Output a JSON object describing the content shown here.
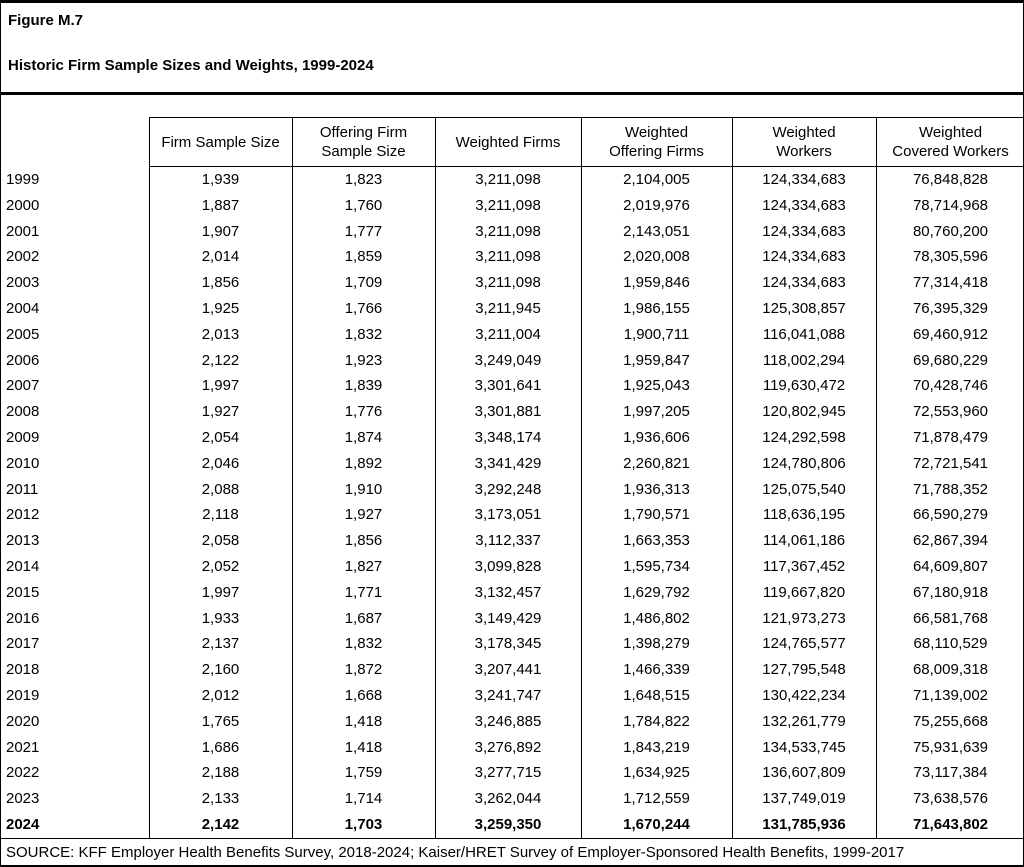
{
  "header": {
    "figure_label": "Figure M.7",
    "title": "Historic Firm Sample Sizes and Weights, 1999-2024"
  },
  "chart_data": {
    "type": "table",
    "title": "Historic Firm Sample Sizes and Weights, 1999-2024",
    "columns": [
      "Firm Sample Size",
      "Offering Firm\nSample Size",
      "Weighted Firms",
      "Weighted\nOffering Firms",
      "Weighted\nWorkers",
      "Weighted\nCovered Workers"
    ],
    "rows": [
      {
        "year": "1999",
        "values": [
          "1,939",
          "1,823",
          "3,211,098",
          "2,104,005",
          "124,334,683",
          "76,848,828"
        ]
      },
      {
        "year": "2000",
        "values": [
          "1,887",
          "1,760",
          "3,211,098",
          "2,019,976",
          "124,334,683",
          "78,714,968"
        ]
      },
      {
        "year": "2001",
        "values": [
          "1,907",
          "1,777",
          "3,211,098",
          "2,143,051",
          "124,334,683",
          "80,760,200"
        ]
      },
      {
        "year": "2002",
        "values": [
          "2,014",
          "1,859",
          "3,211,098",
          "2,020,008",
          "124,334,683",
          "78,305,596"
        ]
      },
      {
        "year": "2003",
        "values": [
          "1,856",
          "1,709",
          "3,211,098",
          "1,959,846",
          "124,334,683",
          "77,314,418"
        ]
      },
      {
        "year": "2004",
        "values": [
          "1,925",
          "1,766",
          "3,211,945",
          "1,986,155",
          "125,308,857",
          "76,395,329"
        ]
      },
      {
        "year": "2005",
        "values": [
          "2,013",
          "1,832",
          "3,211,004",
          "1,900,711",
          "116,041,088",
          "69,460,912"
        ]
      },
      {
        "year": "2006",
        "values": [
          "2,122",
          "1,923",
          "3,249,049",
          "1,959,847",
          "118,002,294",
          "69,680,229"
        ]
      },
      {
        "year": "2007",
        "values": [
          "1,997",
          "1,839",
          "3,301,641",
          "1,925,043",
          "119,630,472",
          "70,428,746"
        ]
      },
      {
        "year": "2008",
        "values": [
          "1,927",
          "1,776",
          "3,301,881",
          "1,997,205",
          "120,802,945",
          "72,553,960"
        ]
      },
      {
        "year": "2009",
        "values": [
          "2,054",
          "1,874",
          "3,348,174",
          "1,936,606",
          "124,292,598",
          "71,878,479"
        ]
      },
      {
        "year": "2010",
        "values": [
          "2,046",
          "1,892",
          "3,341,429",
          "2,260,821",
          "124,780,806",
          "72,721,541"
        ]
      },
      {
        "year": "2011",
        "values": [
          "2,088",
          "1,910",
          "3,292,248",
          "1,936,313",
          "125,075,540",
          "71,788,352"
        ]
      },
      {
        "year": "2012",
        "values": [
          "2,118",
          "1,927",
          "3,173,051",
          "1,790,571",
          "118,636,195",
          "66,590,279"
        ]
      },
      {
        "year": "2013",
        "values": [
          "2,058",
          "1,856",
          "3,112,337",
          "1,663,353",
          "114,061,186",
          "62,867,394"
        ]
      },
      {
        "year": "2014",
        "values": [
          "2,052",
          "1,827",
          "3,099,828",
          "1,595,734",
          "117,367,452",
          "64,609,807"
        ]
      },
      {
        "year": "2015",
        "values": [
          "1,997",
          "1,771",
          "3,132,457",
          "1,629,792",
          "119,667,820",
          "67,180,918"
        ]
      },
      {
        "year": "2016",
        "values": [
          "1,933",
          "1,687",
          "3,149,429",
          "1,486,802",
          "121,973,273",
          "66,581,768"
        ]
      },
      {
        "year": "2017",
        "values": [
          "2,137",
          "1,832",
          "3,178,345",
          "1,398,279",
          "124,765,577",
          "68,110,529"
        ]
      },
      {
        "year": "2018",
        "values": [
          "2,160",
          "1,872",
          "3,207,441",
          "1,466,339",
          "127,795,548",
          "68,009,318"
        ]
      },
      {
        "year": "2019",
        "values": [
          "2,012",
          "1,668",
          "3,241,747",
          "1,648,515",
          "130,422,234",
          "71,139,002"
        ]
      },
      {
        "year": "2020",
        "values": [
          "1,765",
          "1,418",
          "3,246,885",
          "1,784,822",
          "132,261,779",
          "75,255,668"
        ]
      },
      {
        "year": "2021",
        "values": [
          "1,686",
          "1,418",
          "3,276,892",
          "1,843,219",
          "134,533,745",
          "75,931,639"
        ]
      },
      {
        "year": "2022",
        "values": [
          "2,188",
          "1,759",
          "3,277,715",
          "1,634,925",
          "136,607,809",
          "73,117,384"
        ]
      },
      {
        "year": "2023",
        "values": [
          "2,133",
          "1,714",
          "3,262,044",
          "1,712,559",
          "137,749,019",
          "73,638,576"
        ]
      },
      {
        "year": "2024",
        "values": [
          "2,142",
          "1,703",
          "3,259,350",
          "1,670,244",
          "131,785,936",
          "71,643,802"
        ],
        "bold": true
      }
    ]
  },
  "source": "SOURCE: KFF Employer Health Benefits Survey, 2018-2024; Kaiser/HRET Survey of Employer-Sponsored Health Benefits, 1999-2017"
}
